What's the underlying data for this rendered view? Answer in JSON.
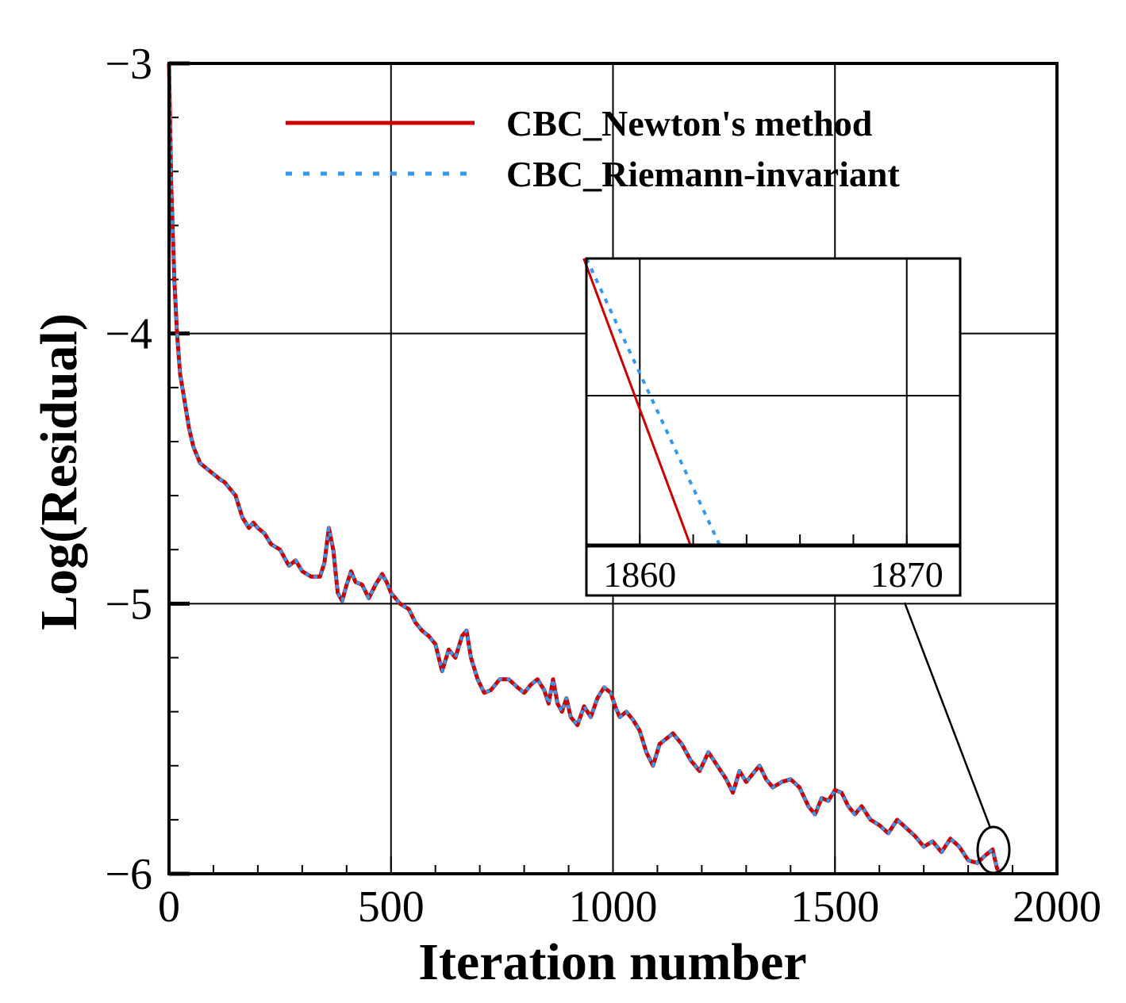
{
  "chart_data": {
    "type": "line",
    "title": "",
    "xlabel": "Iteration number",
    "ylabel": "Log(Residual)",
    "xlim": [
      0,
      2000
    ],
    "ylim": [
      -6,
      -3
    ],
    "x_ticks": [
      "0",
      "500",
      "1000",
      "1500",
      "2000"
    ],
    "y_ticks": [
      "-3",
      "-4",
      "-5",
      "-6"
    ],
    "grid": true,
    "legend_position": "top-right",
    "series": [
      {
        "name": "CBC_Newton's method",
        "color": "#cc0000",
        "style": "solid",
        "x": [
          0,
          5,
          12,
          18,
          25,
          35,
          45,
          55,
          70,
          85,
          100,
          115,
          125,
          135,
          150,
          165,
          180,
          190,
          200,
          215,
          230,
          250,
          270,
          285,
          300,
          320,
          340,
          350,
          360,
          370,
          380,
          390,
          400,
          410,
          420,
          435,
          450,
          465,
          480,
          490,
          500,
          520,
          540,
          555,
          570,
          585,
          600,
          615,
          630,
          645,
          660,
          670,
          680,
          695,
          710,
          725,
          745,
          765,
          785,
          800,
          815,
          830,
          845,
          855,
          865,
          875,
          885,
          895,
          905,
          920,
          935,
          950,
          965,
          980,
          995,
          1005,
          1015,
          1030,
          1045,
          1060,
          1075,
          1090,
          1105,
          1120,
          1135,
          1155,
          1175,
          1195,
          1215,
          1235,
          1255,
          1270,
          1285,
          1300,
          1315,
          1330,
          1345,
          1360,
          1380,
          1400,
          1420,
          1440,
          1455,
          1470,
          1485,
          1500,
          1515,
          1530,
          1545,
          1560,
          1580,
          1600,
          1620,
          1640,
          1660,
          1680,
          1700,
          1720,
          1740,
          1760,
          1780,
          1800,
          1820,
          1840,
          1855,
          1865,
          1872
        ],
        "y": [
          -3.0,
          -3.45,
          -3.8,
          -4.0,
          -4.15,
          -4.25,
          -4.35,
          -4.42,
          -4.48,
          -4.5,
          -4.52,
          -4.54,
          -4.55,
          -4.57,
          -4.6,
          -4.68,
          -4.72,
          -4.7,
          -4.72,
          -4.74,
          -4.78,
          -4.8,
          -4.86,
          -4.84,
          -4.88,
          -4.9,
          -4.9,
          -4.85,
          -4.72,
          -4.8,
          -4.96,
          -4.99,
          -4.93,
          -4.88,
          -4.92,
          -4.93,
          -4.98,
          -4.93,
          -4.89,
          -4.92,
          -4.96,
          -5.0,
          -5.02,
          -5.07,
          -5.1,
          -5.12,
          -5.15,
          -5.25,
          -5.17,
          -5.2,
          -5.12,
          -5.1,
          -5.2,
          -5.28,
          -5.33,
          -5.32,
          -5.28,
          -5.28,
          -5.31,
          -5.33,
          -5.3,
          -5.28,
          -5.32,
          -5.37,
          -5.28,
          -5.37,
          -5.4,
          -5.35,
          -5.42,
          -5.45,
          -5.38,
          -5.42,
          -5.35,
          -5.31,
          -5.33,
          -5.38,
          -5.42,
          -5.4,
          -5.43,
          -5.47,
          -5.55,
          -5.6,
          -5.52,
          -5.5,
          -5.48,
          -5.52,
          -5.58,
          -5.62,
          -5.55,
          -5.6,
          -5.65,
          -5.7,
          -5.62,
          -5.66,
          -5.63,
          -5.6,
          -5.65,
          -5.68,
          -5.66,
          -5.65,
          -5.68,
          -5.75,
          -5.78,
          -5.72,
          -5.73,
          -5.69,
          -5.7,
          -5.75,
          -5.78,
          -5.75,
          -5.8,
          -5.82,
          -5.85,
          -5.8,
          -5.83,
          -5.86,
          -5.9,
          -5.88,
          -5.92,
          -5.87,
          -5.9,
          -5.95,
          -5.96,
          -5.93,
          -5.91,
          -5.98,
          -6.0
        ]
      },
      {
        "name": "CBC_Riemann-invariant",
        "color": "#3399ee",
        "style": "dotted",
        "x": [
          0,
          5,
          12,
          18,
          25,
          35,
          45,
          55,
          70,
          85,
          100,
          115,
          125,
          135,
          150,
          165,
          180,
          190,
          200,
          215,
          230,
          250,
          270,
          285,
          300,
          320,
          340,
          350,
          360,
          370,
          380,
          390,
          400,
          410,
          420,
          435,
          450,
          465,
          480,
          490,
          500,
          520,
          540,
          555,
          570,
          585,
          600,
          615,
          630,
          645,
          660,
          670,
          680,
          695,
          710,
          725,
          745,
          765,
          785,
          800,
          815,
          830,
          845,
          855,
          865,
          875,
          885,
          895,
          905,
          920,
          935,
          950,
          965,
          980,
          995,
          1005,
          1015,
          1030,
          1045,
          1060,
          1075,
          1090,
          1105,
          1120,
          1135,
          1155,
          1175,
          1195,
          1215,
          1235,
          1255,
          1270,
          1285,
          1300,
          1315,
          1330,
          1345,
          1360,
          1380,
          1400,
          1420,
          1440,
          1455,
          1470,
          1485,
          1500,
          1515,
          1530,
          1545,
          1560,
          1580,
          1600,
          1620,
          1640,
          1660,
          1680,
          1700,
          1720,
          1740,
          1760,
          1780,
          1800,
          1820,
          1840,
          1855,
          1865,
          1872
        ],
        "y": [
          -3.0,
          -3.45,
          -3.8,
          -4.0,
          -4.15,
          -4.25,
          -4.35,
          -4.42,
          -4.48,
          -4.5,
          -4.52,
          -4.54,
          -4.55,
          -4.57,
          -4.6,
          -4.68,
          -4.72,
          -4.7,
          -4.72,
          -4.74,
          -4.78,
          -4.8,
          -4.86,
          -4.84,
          -4.88,
          -4.9,
          -4.9,
          -4.85,
          -4.72,
          -4.8,
          -4.96,
          -4.99,
          -4.93,
          -4.88,
          -4.92,
          -4.93,
          -4.98,
          -4.93,
          -4.89,
          -4.92,
          -4.96,
          -5.0,
          -5.02,
          -5.07,
          -5.1,
          -5.12,
          -5.15,
          -5.25,
          -5.17,
          -5.2,
          -5.12,
          -5.1,
          -5.2,
          -5.28,
          -5.33,
          -5.32,
          -5.28,
          -5.28,
          -5.31,
          -5.33,
          -5.3,
          -5.28,
          -5.32,
          -5.37,
          -5.28,
          -5.37,
          -5.4,
          -5.35,
          -5.42,
          -5.45,
          -5.38,
          -5.42,
          -5.35,
          -5.31,
          -5.33,
          -5.38,
          -5.42,
          -5.4,
          -5.43,
          -5.47,
          -5.55,
          -5.6,
          -5.52,
          -5.5,
          -5.48,
          -5.52,
          -5.58,
          -5.62,
          -5.55,
          -5.6,
          -5.65,
          -5.7,
          -5.62,
          -5.66,
          -5.63,
          -5.6,
          -5.65,
          -5.68,
          -5.66,
          -5.65,
          -5.68,
          -5.75,
          -5.78,
          -5.72,
          -5.73,
          -5.69,
          -5.7,
          -5.75,
          -5.78,
          -5.75,
          -5.8,
          -5.82,
          -5.85,
          -5.8,
          -5.83,
          -5.86,
          -5.9,
          -5.88,
          -5.92,
          -5.87,
          -5.9,
          -5.95,
          -5.96,
          -5.93,
          -5.91,
          -5.98,
          -5.99
        ]
      }
    ],
    "inset": {
      "xlim": [
        1858,
        1872
      ],
      "x_ticks": [
        "1860",
        "1870"
      ],
      "series": [
        {
          "name": "CBC_Newton's method",
          "x": [
            1857.9,
            1861.9
          ],
          "y": [
            1.0,
            0.0
          ]
        },
        {
          "name": "CBC_Riemann-invariant",
          "x": [
            1858.0,
            1863.0
          ],
          "y": [
            1.0,
            0.0
          ]
        }
      ]
    }
  }
}
